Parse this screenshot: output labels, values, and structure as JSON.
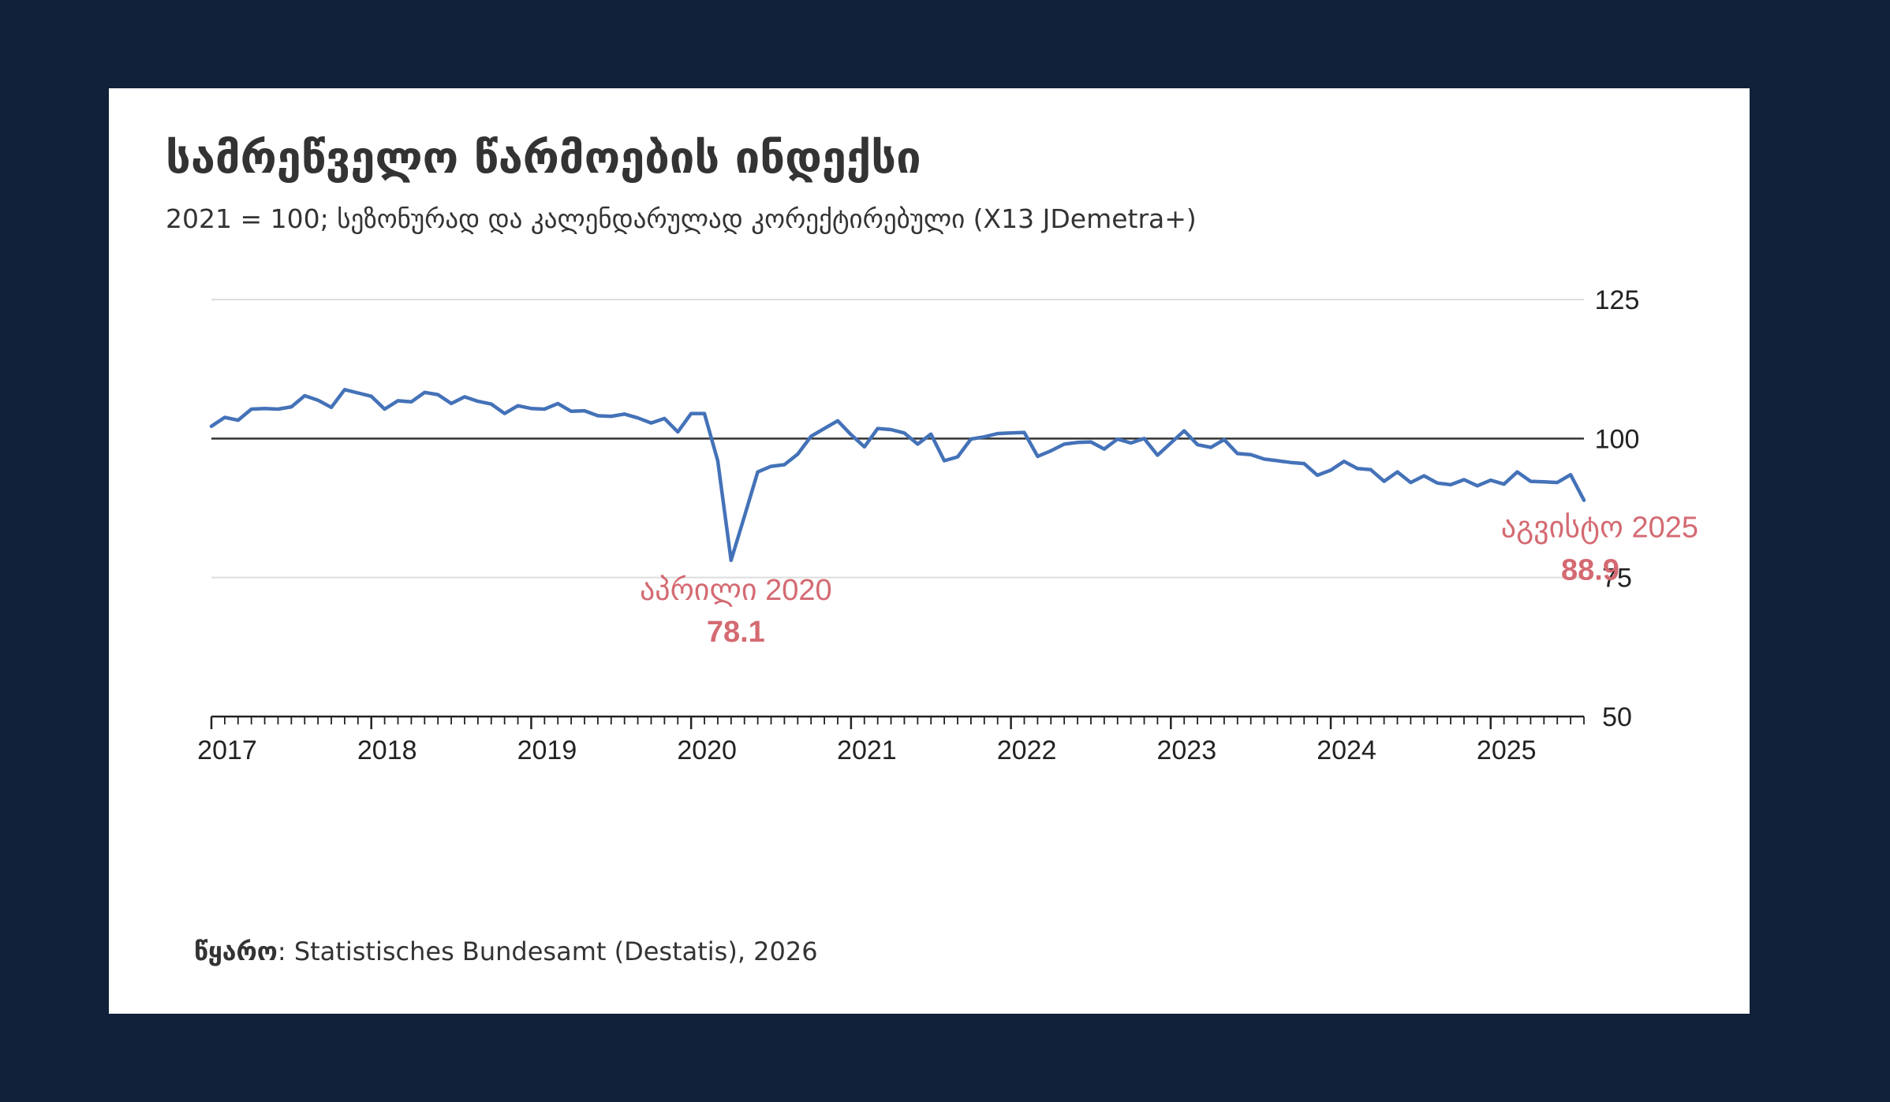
{
  "chart_data": {
    "type": "line",
    "title": "სამრეწველო წარმოების ინდექსი",
    "subtitle": "2021 = 100; სეზონურად და კალენდარულად კორექტირებული (X13 JDemetra+)",
    "source_label": "წყარო",
    "source_text": ": Statistisches Bundesamt (Destatis), 2026",
    "xlabel": "",
    "ylabel": "",
    "ylim": [
      50,
      125
    ],
    "yticks": [
      125,
      100,
      75,
      50
    ],
    "xticks": [
      "2017",
      "2018",
      "2019",
      "2020",
      "2021",
      "2022",
      "2023",
      "2024",
      "2025"
    ],
    "reference_line": 100,
    "grid": true,
    "series": [
      {
        "name": "სამრეწველო წარმოების ინდექსი",
        "color": "#4472b8",
        "start": "2017-01",
        "values": [
          102.2,
          103.8,
          103.3,
          105.3,
          105.4,
          105.3,
          105.7,
          107.7,
          106.9,
          105.6,
          108.8,
          108.2,
          107.6,
          105.3,
          106.8,
          106.6,
          108.3,
          107.9,
          106.3,
          107.5,
          106.7,
          106.2,
          104.5,
          105.9,
          105.4,
          105.3,
          106.3,
          104.9,
          105.0,
          104.1,
          104.0,
          104.4,
          103.7,
          102.8,
          103.6,
          101.2,
          104.5,
          104.5,
          96.0,
          78.1,
          86.0,
          94.0,
          95.0,
          95.3,
          97.2,
          100.4,
          101.8,
          103.2,
          100.7,
          98.5,
          101.8,
          101.6,
          101.0,
          99.0,
          100.8,
          96.0,
          96.7,
          99.9,
          100.3,
          100.9,
          101.0,
          101.1,
          96.8,
          97.8,
          99.0,
          99.3,
          99.4,
          98.1,
          99.9,
          99.2,
          100.0,
          97.0,
          99.2,
          101.4,
          98.9,
          98.4,
          99.8,
          97.3,
          97.1,
          96.3,
          96.0,
          95.7,
          95.5,
          93.4,
          94.3,
          95.9,
          94.6,
          94.4,
          92.3,
          94.0,
          92.1,
          93.3,
          92.0,
          91.7,
          92.6,
          91.5,
          92.5,
          91.8,
          94.0,
          92.3,
          92.2,
          92.1,
          93.5,
          88.9
        ]
      }
    ],
    "annotations": [
      {
        "label": "აპრილი 2020",
        "value_text": "78.1",
        "date": "2020-04",
        "value": 78.1,
        "color": "#d46a72"
      },
      {
        "label": "აგვისტო 2025",
        "value_text": "88.9",
        "date": "2025-08",
        "value": 88.9,
        "color": "#d46a72"
      }
    ]
  }
}
